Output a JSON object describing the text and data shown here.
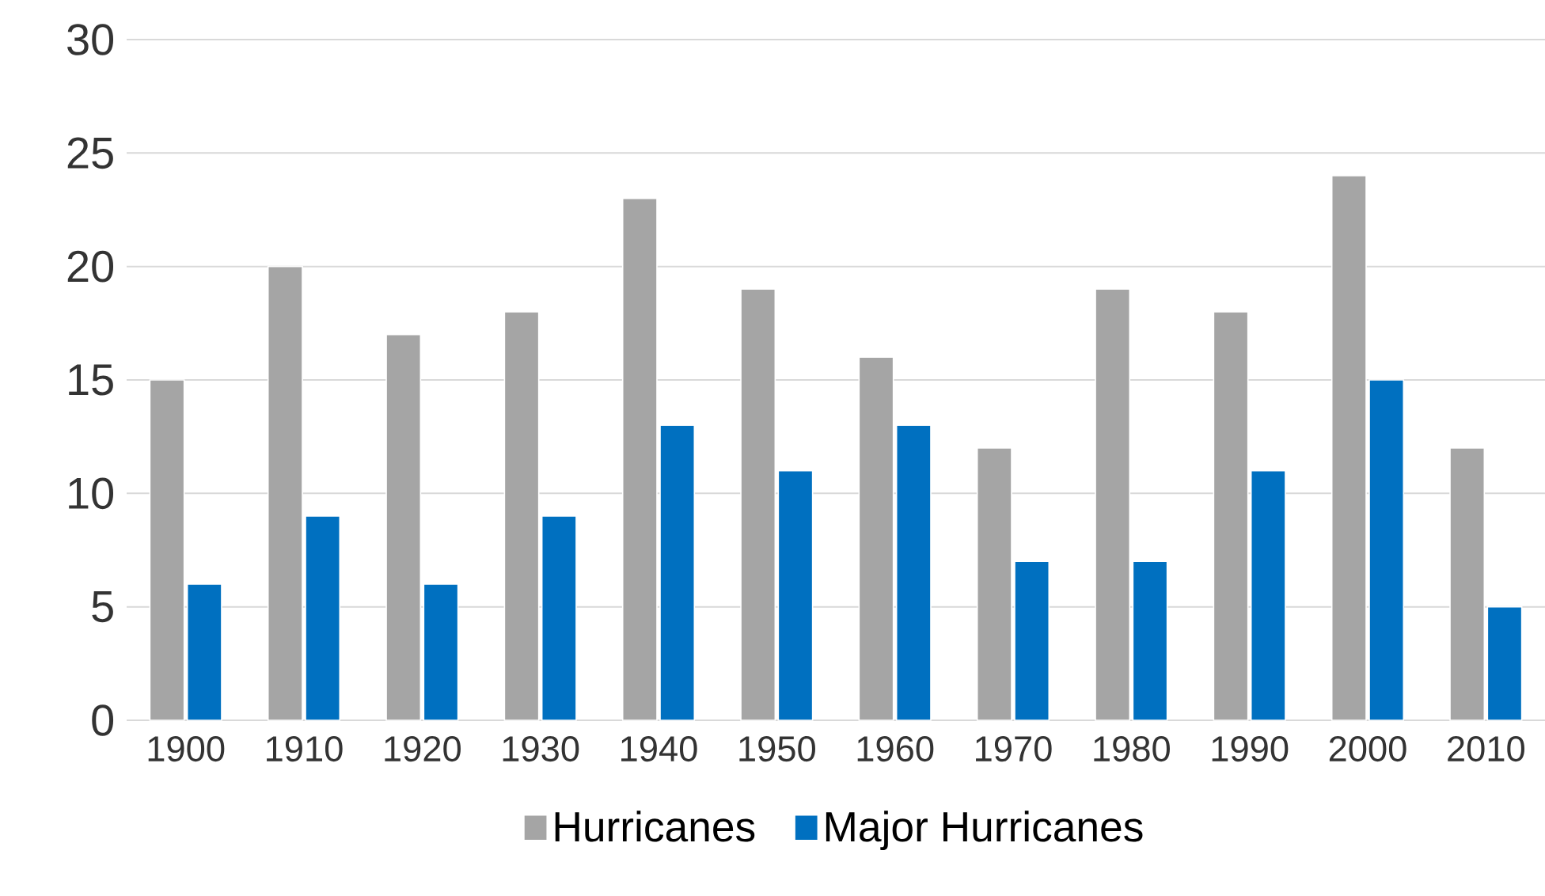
{
  "chart_data": {
    "type": "bar",
    "categories": [
      "1900",
      "1910",
      "1920",
      "1930",
      "1940",
      "1950",
      "1960",
      "1970",
      "1980",
      "1990",
      "2000",
      "2010"
    ],
    "series": [
      {
        "name": "Hurricanes",
        "color": "#a5a5a5",
        "values": [
          15,
          20,
          17,
          18,
          23,
          19,
          16,
          12,
          19,
          18,
          24,
          12
        ]
      },
      {
        "name": "Major Hurricanes",
        "color": "#0070c0",
        "values": [
          6,
          9,
          6,
          9,
          13,
          11,
          13,
          7,
          7,
          11,
          15,
          5
        ]
      }
    ],
    "ylim": [
      0,
      30
    ],
    "yticks": [
      0,
      5,
      10,
      15,
      20,
      25,
      30
    ],
    "grid": "y",
    "legend": "bottom"
  }
}
